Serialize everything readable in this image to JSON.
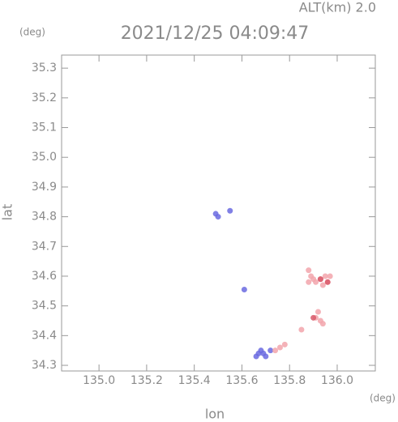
{
  "chart_data": {
    "type": "scatter",
    "title": "2021/12/25 04:09:47",
    "subtitle": "ALT(km) 2.0",
    "y_unit": "(deg)",
    "x_unit": "(deg)",
    "x_label": "lon",
    "y_label": "lat",
    "xlim": [
      134.843,
      136.16
    ],
    "ylim": [
      34.281,
      35.344
    ],
    "xticks": [
      {
        "value": 135,
        "label": "135.0"
      },
      135.2,
      135.4,
      135.6,
      135.8,
      {
        "value": 136,
        "label": "136.0"
      }
    ],
    "yticks": [
      34.3,
      34.4,
      34.5,
      34.6,
      34.7,
      34.8,
      34.9,
      {
        "value": 35,
        "label": "35.0"
      },
      35.1,
      35.2,
      35.3
    ],
    "series": [
      {
        "color": "#6a6ae0",
        "x": [
          135.49,
          135.5,
          135.55,
          135.61,
          135.67,
          135.68,
          135.69,
          135.7,
          135.66,
          135.72
        ],
        "values": [
          34.81,
          34.8,
          34.82,
          34.555,
          34.34,
          34.35,
          34.34,
          34.33,
          34.33,
          34.35
        ]
      },
      {
        "color": "#f2a4ac",
        "x": [
          135.88,
          135.89,
          135.9,
          135.91,
          135.93,
          135.95,
          135.96,
          135.97,
          135.94,
          135.88,
          135.92,
          135.93,
          135.94,
          135.91,
          135.85,
          135.78,
          135.76,
          135.74
        ],
        "values": [
          34.62,
          34.6,
          34.59,
          34.58,
          34.59,
          34.6,
          34.58,
          34.6,
          34.57,
          34.58,
          34.48,
          34.45,
          34.44,
          34.46,
          34.42,
          34.37,
          34.36,
          34.35
        ]
      },
      {
        "color": "#d85868",
        "x": [
          135.93,
          135.9,
          135.96
        ],
        "values": [
          34.59,
          34.46,
          34.58
        ]
      }
    ]
  }
}
